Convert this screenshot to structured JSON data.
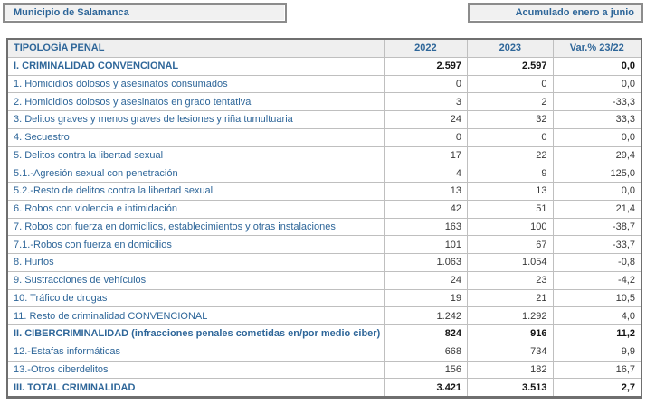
{
  "page": {
    "region_label": "Municipio de Salamanca",
    "period_label": "Acumulado enero a junio"
  },
  "colors": {
    "accent_blue": "#2E6699",
    "number_text": "#383838",
    "header_row_bg": "#EFEFEF",
    "grid_border_light": "#BFBFBF",
    "grid_border_dark": "#6F6F6F",
    "top_box_bg": "#F1F1F1"
  },
  "table": {
    "columns": [
      "TIPOLOGÍA PENAL",
      "2022",
      "2023",
      "Var.% 23/22"
    ],
    "rows": [
      {
        "label": "I. CRIMINALIDAD CONVENCIONAL",
        "y2022": "2.597",
        "y2023": "2.597",
        "var": "0,0",
        "bold": true
      },
      {
        "label": "1. Homicidios dolosos y asesinatos consumados",
        "y2022": "0",
        "y2023": "0",
        "var": "0,0",
        "bold": false
      },
      {
        "label": "2. Homicidios dolosos y asesinatos en grado tentativa",
        "y2022": "3",
        "y2023": "2",
        "var": "-33,3",
        "bold": false
      },
      {
        "label": "3. Delitos graves y menos graves de lesiones y riña tumultuaria",
        "y2022": "24",
        "y2023": "32",
        "var": "33,3",
        "bold": false
      },
      {
        "label": "4. Secuestro",
        "y2022": "0",
        "y2023": "0",
        "var": "0,0",
        "bold": false
      },
      {
        "label": "5. Delitos contra la libertad sexual",
        "y2022": "17",
        "y2023": "22",
        "var": "29,4",
        "bold": false
      },
      {
        "label": "5.1.-Agresión sexual con penetración",
        "y2022": "4",
        "y2023": "9",
        "var": "125,0",
        "bold": false
      },
      {
        "label": "5.2.-Resto de delitos contra la libertad sexual",
        "y2022": "13",
        "y2023": "13",
        "var": "0,0",
        "bold": false
      },
      {
        "label": "6. Robos con violencia e intimidación",
        "y2022": "42",
        "y2023": "51",
        "var": "21,4",
        "bold": false
      },
      {
        "label": "7. Robos con fuerza en domicilios, establecimientos y otras instalaciones",
        "y2022": "163",
        "y2023": "100",
        "var": "-38,7",
        "bold": false
      },
      {
        "label": "7.1.-Robos con fuerza en domicilios",
        "y2022": "101",
        "y2023": "67",
        "var": "-33,7",
        "bold": false
      },
      {
        "label": "8. Hurtos",
        "y2022": "1.063",
        "y2023": "1.054",
        "var": "-0,8",
        "bold": false
      },
      {
        "label": "9. Sustracciones de vehículos",
        "y2022": "24",
        "y2023": "23",
        "var": "-4,2",
        "bold": false
      },
      {
        "label": "10. Tráfico de drogas",
        "y2022": "19",
        "y2023": "21",
        "var": "10,5",
        "bold": false
      },
      {
        "label": "11. Resto de criminalidad CONVENCIONAL",
        "y2022": "1.242",
        "y2023": "1.292",
        "var": "4,0",
        "bold": false
      },
      {
        "label": "II. CIBERCRIMINALIDAD (infracciones penales cometidas en/por medio ciber)",
        "y2022": "824",
        "y2023": "916",
        "var": "11,2",
        "bold": true
      },
      {
        "label": "12.-Estafas informáticas",
        "y2022": "668",
        "y2023": "734",
        "var": "9,9",
        "bold": false
      },
      {
        "label": "13.-Otros ciberdelitos",
        "y2022": "156",
        "y2023": "182",
        "var": "16,7",
        "bold": false
      },
      {
        "label": "III. TOTAL CRIMINALIDAD",
        "y2022": "3.421",
        "y2023": "3.513",
        "var": "2,7",
        "bold": true
      }
    ]
  }
}
